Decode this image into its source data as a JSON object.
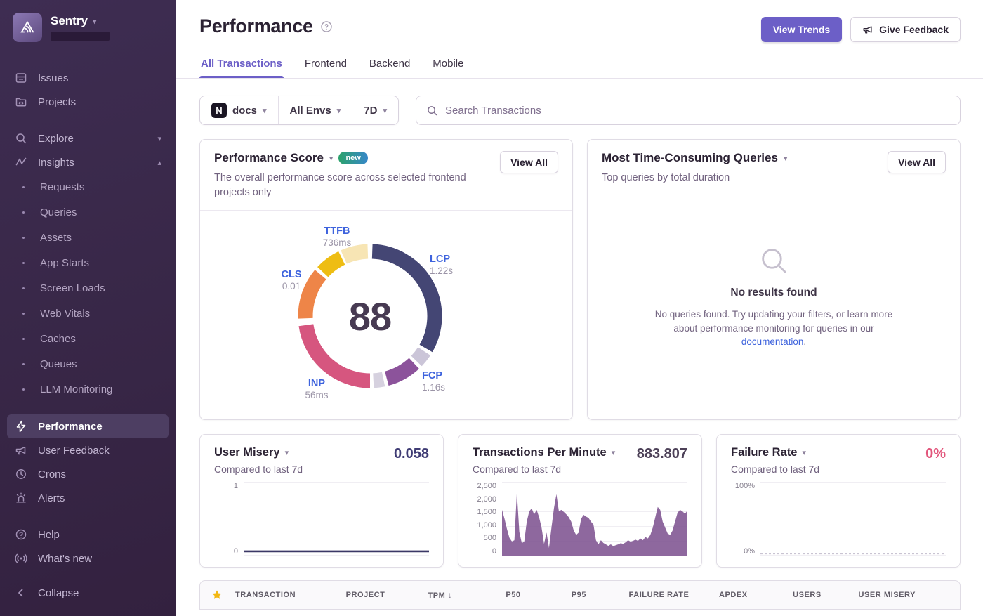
{
  "colors": {
    "accent": "#6c5fc7",
    "sidebar_bg": "#392849",
    "link_blue": "#3e63dd",
    "failure_pink": "#e2567c",
    "donut_lcp": "#444674",
    "donut_fcp": "#8c539b",
    "donut_inp": "#d6567f",
    "donut_cls": "#ee8548",
    "donut_ttfb": "#eebd13",
    "tpm_fill": "#7a4e8d",
    "star_gold": "#f2b712"
  },
  "sidebar": {
    "brand": "Sentry",
    "primary": [
      {
        "label": "Issues",
        "icon": "issues-icon"
      },
      {
        "label": "Projects",
        "icon": "projects-icon"
      }
    ],
    "groups": [
      {
        "label": "Explore",
        "icon": "search-icon",
        "chevron": "down"
      },
      {
        "label": "Insights",
        "icon": "insights-icon",
        "chevron": "up"
      }
    ],
    "insights_items": [
      "Requests",
      "Queries",
      "Assets",
      "App Starts",
      "Screen Loads",
      "Web Vitals",
      "Caches",
      "Queues",
      "LLM Monitoring"
    ],
    "secondary": [
      {
        "label": "Performance",
        "icon": "lightning-icon",
        "active": true
      },
      {
        "label": "User Feedback",
        "icon": "megaphone-icon"
      },
      {
        "label": "Crons",
        "icon": "clock-icon"
      },
      {
        "label": "Alerts",
        "icon": "siren-icon"
      }
    ],
    "tertiary": [
      {
        "label": "Help",
        "icon": "help-icon"
      },
      {
        "label": "What's new",
        "icon": "broadcast-icon"
      }
    ],
    "collapse_label": "Collapse"
  },
  "header": {
    "title": "Performance",
    "view_trends": "View Trends",
    "give_feedback": "Give Feedback"
  },
  "tabs": [
    {
      "label": "All Transactions",
      "active": true
    },
    {
      "label": "Frontend",
      "active": false
    },
    {
      "label": "Backend",
      "active": false
    },
    {
      "label": "Mobile",
      "active": false
    }
  ],
  "filters": {
    "project": "docs",
    "project_icon": "N",
    "env": "All Envs",
    "range": "7D",
    "search_placeholder": "Search Transactions"
  },
  "cards": {
    "performance_score": {
      "title": "Performance Score",
      "badge": "new",
      "description": "The overall performance score across selected frontend projects only",
      "view_all": "View All"
    },
    "queries": {
      "title": "Most Time-Consuming Queries",
      "subtitle": "Top queries by total duration",
      "view_all": "View All",
      "empty_title": "No results found",
      "empty_body_pre": "No queries found. Try updating your filters, or learn more about performance monitoring for queries in our ",
      "empty_link": "documentation",
      "empty_body_post": "."
    },
    "user_misery": {
      "title": "User Misery",
      "subtitle": "Compared to last 7d",
      "value": "0.058"
    },
    "tpm": {
      "title": "Transactions Per Minute",
      "subtitle": "Compared to last 7d",
      "value": "883.807"
    },
    "failure_rate": {
      "title": "Failure Rate",
      "subtitle": "Compared to last 7d",
      "value": "0%"
    }
  },
  "table": {
    "sort_arrow": "↓",
    "columns": [
      "TRANSACTION",
      "PROJECT",
      "TPM",
      "P50",
      "P95",
      "FAILURE RATE",
      "APDEX",
      "USERS",
      "USER MISERY"
    ]
  },
  "chart_data": [
    {
      "id": "web-vitals-ring",
      "type": "donut",
      "title": "Performance Score",
      "center_value": 88,
      "segments": [
        {
          "label": "LCP",
          "value": "1.22s",
          "from": 2,
          "to": 120,
          "color": "#444674"
        },
        {
          "label": "lcp-remainder",
          "from": 123,
          "to": 134,
          "color": "#cbc5d8"
        },
        {
          "label": "FCP",
          "value": "1.16s",
          "from": 137,
          "to": 165,
          "color": "#8c539b"
        },
        {
          "label": "fcp-remainder",
          "from": 168,
          "to": 177,
          "color": "#d6d1df"
        },
        {
          "label": "INP",
          "value": "56ms",
          "from": 180,
          "to": 262,
          "color": "#d6567f"
        },
        {
          "label": "CLS",
          "value": "0.01",
          "from": 268,
          "to": 310,
          "color": "#ee8548"
        },
        {
          "label": "TTFB",
          "value": "736ms",
          "from": 313,
          "to": 334,
          "color": "#eebd13"
        },
        {
          "label": "ttfb-remainder",
          "from": 336,
          "to": 358,
          "color": "#f7e5b4"
        }
      ]
    },
    {
      "id": "tpm-area",
      "type": "area",
      "title": "Transactions Per Minute",
      "ylim": [
        0,
        2500
      ],
      "yticks": [
        "2,500",
        "2,000",
        "1,500",
        "1,000",
        "500",
        "0"
      ],
      "fill": "#7a4e8d",
      "values": [
        1550,
        1250,
        900,
        600,
        480,
        520,
        2150,
        800,
        420,
        480,
        1150,
        1500,
        1600,
        1400,
        1550,
        1300,
        950,
        400,
        780,
        260,
        950,
        1600,
        2080,
        1500,
        1550,
        1480,
        1400,
        1300,
        1150,
        850,
        700,
        780,
        1250,
        1380,
        1320,
        1280,
        1150,
        1050,
        520,
        380,
        520,
        430,
        380,
        330,
        380,
        320,
        350,
        380,
        420,
        400,
        450,
        520,
        470,
        500,
        540,
        500,
        580,
        520,
        630,
        580,
        700,
        950,
        1300,
        1650,
        1550,
        1150,
        950,
        750,
        700,
        850,
        1150,
        1450,
        1550,
        1500,
        1420,
        1520
      ]
    },
    {
      "id": "user-misery-line",
      "type": "line",
      "title": "User Misery",
      "ylim": [
        0,
        1
      ],
      "yticks": [
        "1",
        "0"
      ],
      "color": "#3b3866",
      "width": 2.6,
      "dashed": false,
      "values": [
        0.058,
        0.058
      ]
    },
    {
      "id": "failure-rate-line",
      "type": "line",
      "title": "Failure Rate",
      "ylim": [
        0,
        100
      ],
      "yticks": [
        "100%",
        "0%"
      ],
      "color": "#c9c4d2",
      "width": 1.4,
      "dashed": true,
      "values": [
        0,
        0
      ]
    }
  ]
}
